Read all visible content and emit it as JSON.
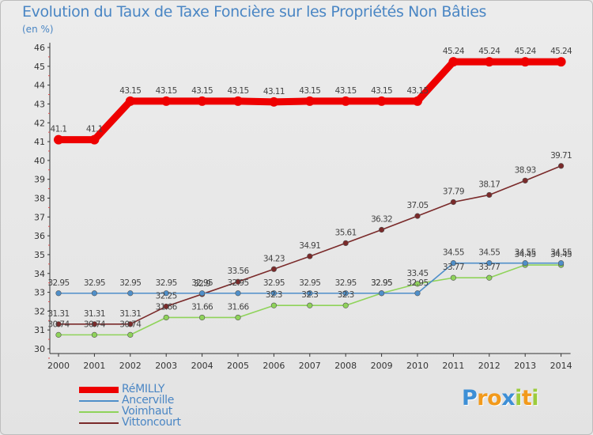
{
  "title": "Evolution du Taux de Taxe Foncière sur les Propriétés Non Bâties",
  "subtitle": "(en %)",
  "chart_data": {
    "type": "line",
    "title": "Evolution du Taux de Taxe Foncière sur les Propriétés Non Bâties",
    "ylabel": "(en %)",
    "xlabel": "",
    "categories": [
      "2000",
      "2001",
      "2002",
      "2003",
      "2004",
      "2005",
      "2006",
      "2007",
      "2008",
      "2009",
      "2010",
      "2011",
      "2012",
      "2013",
      "2014"
    ],
    "ylim": [
      30,
      46
    ],
    "yticks": [
      "30",
      "31",
      "32",
      "33",
      "34",
      "35",
      "36",
      "37",
      "38",
      "39",
      "40",
      "41",
      "42",
      "43",
      "44",
      "45",
      "46"
    ],
    "grid": false,
    "legend_position": "bottom-left",
    "series": [
      {
        "name": "RéMILLY",
        "color": "#ee0000",
        "values": [
          41.1,
          41.1,
          43.15,
          43.15,
          43.15,
          43.15,
          43.11,
          43.15,
          43.15,
          43.15,
          43.15,
          45.24,
          45.24,
          45.24,
          45.24
        ],
        "labels": [
          "41.1",
          "41.1",
          "43.15",
          "43.15",
          "43.15",
          "43.15",
          "43.11",
          "43.15",
          "43.15",
          "43.15",
          "43.15",
          "45.24",
          "45.24",
          "45.24",
          "45.24"
        ]
      },
      {
        "name": "Ancerville",
        "color": "#4f8fc9",
        "values": [
          32.95,
          32.95,
          32.95,
          32.95,
          32.95,
          32.95,
          32.95,
          32.95,
          32.95,
          32.95,
          32.95,
          34.55,
          34.55,
          34.55,
          34.55
        ],
        "labels": [
          "32.95",
          "32.95",
          "32.95",
          "32.95",
          "32.95",
          "32.95",
          "32.95",
          "32.95",
          "32.95",
          "32.95",
          "32.95",
          "34.55",
          "34.55",
          "34.55",
          "34.55"
        ]
      },
      {
        "name": "Voimhaut",
        "color": "#8fd35a",
        "values": [
          30.74,
          30.74,
          30.74,
          31.66,
          31.66,
          31.66,
          32.3,
          32.3,
          32.3,
          32.95,
          33.45,
          33.77,
          33.77,
          34.45,
          34.45
        ],
        "labels": [
          "30.74",
          "30.74",
          "30.74",
          "31.66",
          "31.66",
          "31.66",
          "32.3",
          "32.3",
          "32.3",
          "32.95",
          "33.45",
          "33.77",
          "33.77",
          "34.45",
          "34.45"
        ]
      },
      {
        "name": "Vittoncourt",
        "color": "#7a2a2a",
        "values": [
          31.31,
          31.31,
          31.31,
          32.25,
          32.9,
          33.56,
          34.23,
          34.91,
          35.61,
          36.32,
          37.05,
          37.79,
          38.17,
          38.93,
          39.71
        ],
        "labels": [
          "31.31",
          "31.31",
          "31.31",
          "32.25",
          "32.9",
          "33.56",
          "34.23",
          "34.91",
          "35.61",
          "36.32",
          "37.05",
          "37.79",
          "38.17",
          "38.93",
          "39.71"
        ]
      }
    ]
  },
  "legend": {
    "items": [
      {
        "label": "RéMILLY",
        "color": "#ee0000"
      },
      {
        "label": "Ancerville",
        "color": "#4f8fc9"
      },
      {
        "label": "Voimhaut",
        "color": "#8fd35a"
      },
      {
        "label": "Vittoncourt",
        "color": "#7a2a2a"
      }
    ]
  },
  "logo": {
    "letters": [
      "P",
      "r",
      "o",
      "x",
      "i",
      "t",
      "i"
    ],
    "colors": [
      "#3d8fd6",
      "#f29a1c",
      "#f29a1c",
      "#3d8fd6",
      "#9ccc3c",
      "#f29a1c",
      "#9ccc3c"
    ]
  }
}
